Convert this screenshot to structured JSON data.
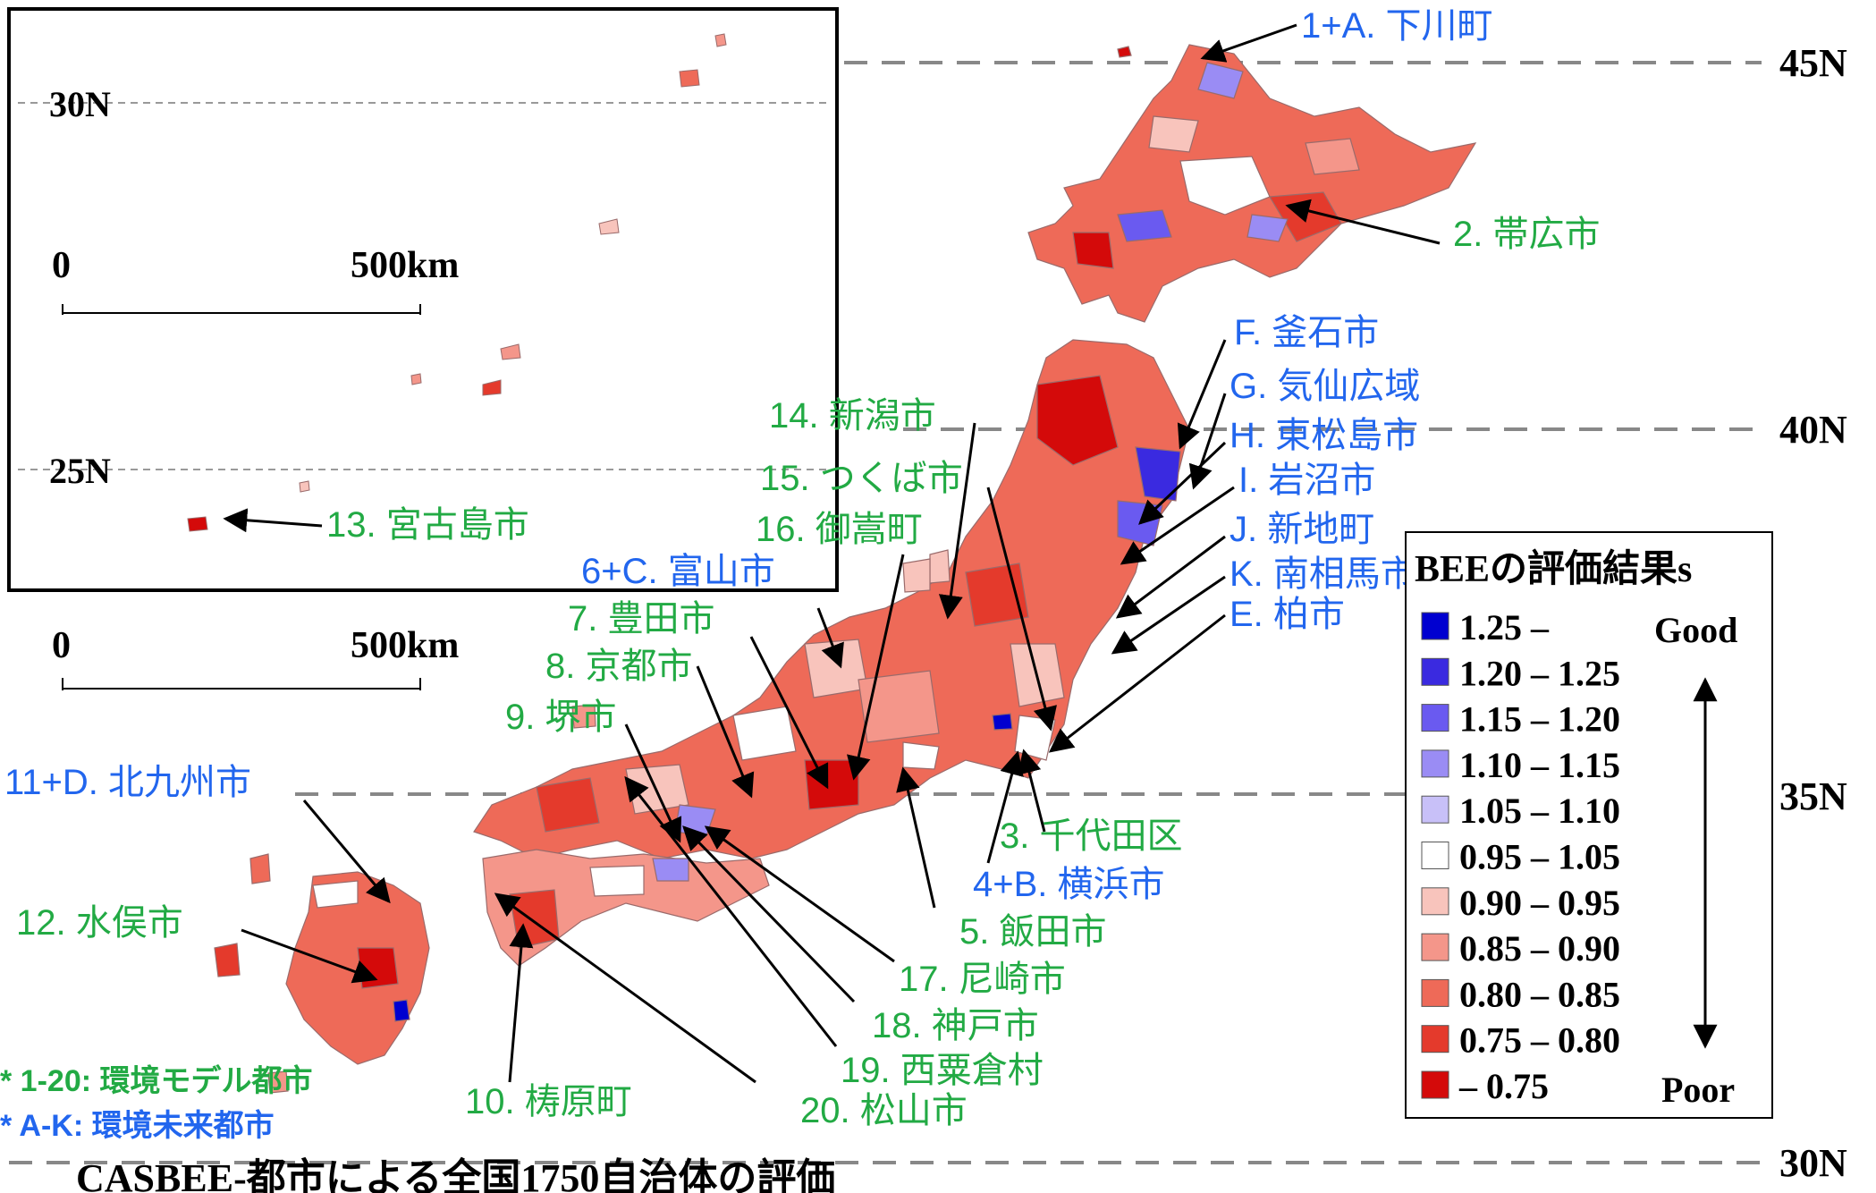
{
  "title": "CASBEE-都市による全国1750自治体の評価",
  "latitude_labels": [
    "45N",
    "40N",
    "35N",
    "30N"
  ],
  "inset": {
    "latitude_labels": [
      "30N",
      "25N"
    ],
    "scale_zero": "0",
    "scale_label": "500km"
  },
  "main_scale": {
    "zero": "0",
    "label": "500km"
  },
  "legend": {
    "title": "BEEの評価結果s",
    "good_label": "Good",
    "poor_label": "Poor",
    "classes": [
      {
        "label": "1.25 –",
        "color": "#0000d0"
      },
      {
        "label": "1.20 – 1.25",
        "color": "#3a2ae0"
      },
      {
        "label": "1.15 – 1.20",
        "color": "#6a5af0"
      },
      {
        "label": "1.10 – 1.15",
        "color": "#9a8cf4"
      },
      {
        "label": "1.05 – 1.10",
        "color": "#c8c0f8"
      },
      {
        "label": "0.95 – 1.05",
        "color": "#ffffff"
      },
      {
        "label": "0.90 – 0.95",
        "color": "#f8c4bc"
      },
      {
        "label": "0.85 – 0.90",
        "color": "#f4968a"
      },
      {
        "label": "0.80 – 0.85",
        "color": "#ee6a58"
      },
      {
        "label": "0.75 – 0.80",
        "color": "#e43a2c"
      },
      {
        "label": "– 0.75",
        "color": "#d40a0a"
      }
    ]
  },
  "notes": {
    "model_cities": "* 1-20: 環境モデル都市",
    "future_cities": "* A-K: 環境未来都市"
  },
  "colors": {
    "model_city": "#22aa44",
    "future_city": "#2266ee"
  },
  "cities": [
    {
      "label": "1+A. 下川町",
      "type": "future"
    },
    {
      "label": "2. 帯広市",
      "type": "model"
    },
    {
      "label": "F. 釜石市",
      "type": "future"
    },
    {
      "label": "G. 気仙広域",
      "type": "future"
    },
    {
      "label": "H. 東松島市",
      "type": "future"
    },
    {
      "label": "I. 岩沼市",
      "type": "future"
    },
    {
      "label": "J. 新地町",
      "type": "future"
    },
    {
      "label": "K. 南相馬市",
      "type": "future"
    },
    {
      "label": "E. 柏市",
      "type": "future"
    },
    {
      "label": "14. 新潟市",
      "type": "model"
    },
    {
      "label": "15. つくば市",
      "type": "model"
    },
    {
      "label": "16. 御嵩町",
      "type": "model"
    },
    {
      "label": "6+C. 富山市",
      "type": "future"
    },
    {
      "label": "7. 豊田市",
      "type": "model"
    },
    {
      "label": "8. 京都市",
      "type": "model"
    },
    {
      "label": "9. 堺市",
      "type": "model"
    },
    {
      "label": "11+D. 北九州市",
      "type": "future"
    },
    {
      "label": "12. 水俣市",
      "type": "model"
    },
    {
      "label": "13. 宮古島市",
      "type": "model"
    },
    {
      "label": "3. 千代田区",
      "type": "model"
    },
    {
      "label": "4+B. 横浜市",
      "type": "future"
    },
    {
      "label": "5. 飯田市",
      "type": "model"
    },
    {
      "label": "17. 尼崎市",
      "type": "model"
    },
    {
      "label": "18. 神戸市",
      "type": "model"
    },
    {
      "label": "19. 西粟倉村",
      "type": "model"
    },
    {
      "label": "10. 梼原町",
      "type": "model"
    },
    {
      "label": "20. 松山市",
      "type": "model"
    }
  ]
}
